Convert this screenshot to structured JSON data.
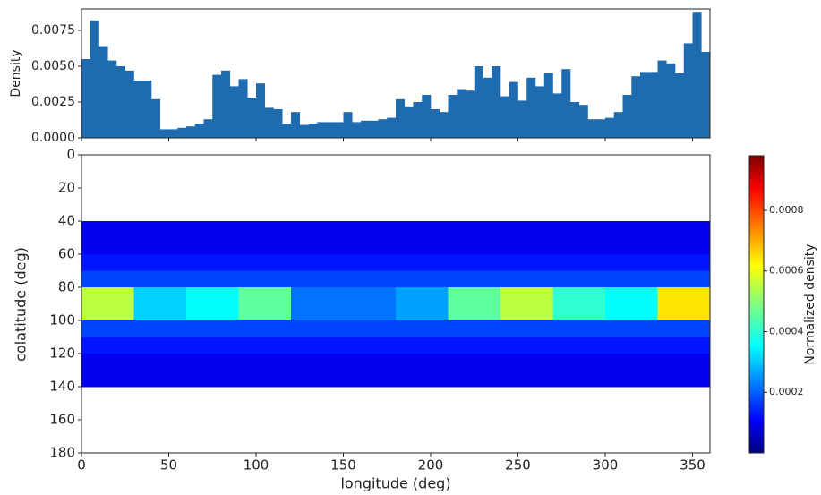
{
  "chart_data": [
    {
      "type": "histogram",
      "ylabel": "Density",
      "color": "#1f6bb0",
      "bins": [
        0,
        5,
        10,
        15,
        20,
        25,
        30,
        35,
        40,
        45,
        50,
        55,
        60,
        65,
        70,
        75,
        80,
        85,
        90,
        95,
        100,
        105,
        110,
        115,
        120,
        125,
        130,
        135,
        140,
        145,
        150,
        155,
        160,
        165,
        170,
        175,
        180,
        185,
        190,
        195,
        200,
        205,
        210,
        215,
        220,
        225,
        230,
        235,
        240,
        245,
        250,
        255,
        260,
        265,
        270,
        275,
        280,
        285,
        290,
        295,
        300,
        305,
        310,
        315,
        320,
        325,
        330,
        335,
        340,
        345,
        350,
        355,
        360
      ],
      "values": [
        0.0055,
        0.0082,
        0.0064,
        0.0054,
        0.005,
        0.0047,
        0.004,
        0.004,
        0.0027,
        0.0006,
        0.0006,
        0.0007,
        0.0008,
        0.001,
        0.0013,
        0.0044,
        0.0047,
        0.0036,
        0.0041,
        0.0028,
        0.0038,
        0.0021,
        0.002,
        0.001,
        0.0018,
        0.0009,
        0.001,
        0.0011,
        0.0011,
        0.0011,
        0.0018,
        0.0011,
        0.0012,
        0.0012,
        0.0013,
        0.0014,
        0.0027,
        0.0022,
        0.0025,
        0.003,
        0.002,
        0.0018,
        0.003,
        0.0034,
        0.0033,
        0.005,
        0.0042,
        0.005,
        0.0029,
        0.0039,
        0.0026,
        0.0042,
        0.0036,
        0.0045,
        0.0031,
        0.0048,
        0.0025,
        0.0023,
        0.0013,
        0.0013,
        0.0014,
        0.0018,
        0.003,
        0.0043,
        0.0046,
        0.0046,
        0.0054,
        0.0052,
        0.0045,
        0.0066,
        0.0088,
        0.006
      ],
      "xlim": [
        0,
        360
      ],
      "xticks": [
        0,
        50,
        100,
        150,
        200,
        250,
        300,
        350
      ],
      "ylim": [
        0,
        0.009
      ],
      "yticks": [
        {
          "value": 0,
          "label": "0.0000"
        },
        {
          "value": 0.0025,
          "label": "0.0025"
        },
        {
          "value": 0.005,
          "label": "0.0050"
        },
        {
          "value": 0.0075,
          "label": "0.0075"
        }
      ]
    },
    {
      "type": "heatmap",
      "xlabel": "longitude (deg)",
      "ylabel": "colatitude (deg)",
      "colormap": "jet",
      "y_inverted": true,
      "x_bins": [
        0,
        30,
        60,
        90,
        120,
        150,
        180,
        210,
        240,
        270,
        300,
        330,
        360
      ],
      "y_bins": [
        0,
        10,
        20,
        30,
        40,
        50,
        60,
        70,
        80,
        90,
        100,
        110,
        120,
        130,
        140,
        150,
        160,
        170,
        180
      ],
      "z": [
        [
          null,
          null,
          null,
          null,
          null,
          null,
          null,
          null,
          null,
          null,
          null,
          null
        ],
        [
          null,
          null,
          null,
          null,
          null,
          null,
          null,
          null,
          null,
          null,
          null,
          null
        ],
        [
          null,
          null,
          null,
          null,
          null,
          null,
          null,
          null,
          null,
          null,
          null,
          null
        ],
        [
          null,
          null,
          null,
          null,
          null,
          null,
          null,
          null,
          null,
          null,
          null,
          null
        ],
        [
          1e-05,
          1e-05,
          1e-05,
          1e-05,
          1e-05,
          1e-05,
          1e-05,
          1e-05,
          1e-05,
          1e-05,
          1e-05,
          1e-05
        ],
        [
          1e-05,
          1e-05,
          1e-05,
          1e-05,
          1e-05,
          1e-05,
          1e-05,
          1e-05,
          1e-05,
          1e-05,
          1e-05,
          1e-05
        ],
        [
          5e-05,
          5e-05,
          5e-05,
          5e-05,
          5e-05,
          5e-05,
          5e-05,
          5e-05,
          5e-05,
          5e-05,
          5e-05,
          5e-05
        ],
        [
          0.0001,
          0.0001,
          0.0001,
          0.0001,
          0.0001,
          0.0001,
          0.0001,
          0.0001,
          0.0001,
          0.0001,
          0.0001,
          0.0001
        ],
        [
          0.0005,
          0.00025,
          0.0003,
          0.0004,
          0.00015,
          0.00015,
          0.0002,
          0.0004,
          0.0005,
          0.00035,
          0.0003,
          0.0006
        ],
        [
          0.0005,
          0.00025,
          0.0003,
          0.0004,
          0.00015,
          0.00015,
          0.0002,
          0.0004,
          0.0005,
          0.00035,
          0.0003,
          0.0006
        ],
        [
          0.0001,
          0.0001,
          0.0001,
          0.0001,
          0.0001,
          0.0001,
          0.0001,
          0.0001,
          0.0001,
          0.0001,
          0.0001,
          0.0001
        ],
        [
          5e-05,
          5e-05,
          5e-05,
          5e-05,
          5e-05,
          5e-05,
          5e-05,
          5e-05,
          5e-05,
          5e-05,
          5e-05,
          5e-05
        ],
        [
          1e-05,
          1e-05,
          1e-05,
          1e-05,
          1e-05,
          1e-05,
          1e-05,
          1e-05,
          1e-05,
          1e-05,
          1e-05,
          1e-05
        ],
        [
          1e-05,
          1e-05,
          1e-05,
          1e-05,
          1e-05,
          1e-05,
          1e-05,
          1e-05,
          1e-05,
          1e-05,
          1e-05,
          1e-05
        ],
        [
          null,
          null,
          null,
          null,
          null,
          null,
          null,
          null,
          null,
          null,
          null,
          null
        ],
        [
          null,
          null,
          null,
          null,
          null,
          null,
          null,
          null,
          null,
          null,
          null,
          null
        ],
        [
          null,
          null,
          null,
          null,
          null,
          null,
          null,
          null,
          null,
          null,
          null,
          null
        ],
        [
          null,
          null,
          null,
          null,
          null,
          null,
          null,
          null,
          null,
          null,
          null,
          null
        ]
      ],
      "xlim": [
        0,
        360
      ],
      "xticks": [
        0,
        50,
        100,
        150,
        200,
        250,
        300,
        350
      ],
      "ylim": [
        0,
        180
      ],
      "yticks": [
        0,
        20,
        40,
        60,
        80,
        100,
        120,
        140,
        160,
        180
      ],
      "colorbar_label": "Normalized density",
      "zlim": [
        0,
        0.00098
      ],
      "zticks": [
        0.0002,
        0.0004,
        0.0006,
        0.0008
      ]
    }
  ]
}
